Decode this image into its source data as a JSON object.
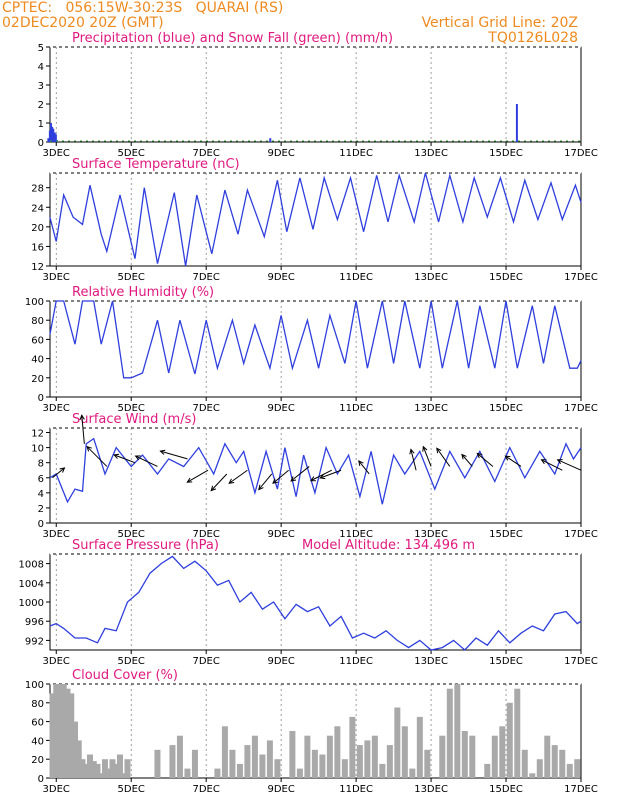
{
  "header": {
    "line1_left": "CPTEC:   056:15W-30:23S   QUARAI (RS)",
    "line2_left": "02DEC2020 20Z (GMT)",
    "line2_right": "Vertical Grid Line: 20Z",
    "line3_right": "TQ0126L028"
  },
  "colors": {
    "header": "#ee8a1e",
    "title": "#e0197f",
    "line": "#2f3fdd",
    "snow": "#2ca02c",
    "cloud": "#a9a9a9"
  },
  "x_axis": {
    "start_day": 2.8333,
    "end_day": 17.0,
    "tick_days": [
      3,
      5,
      7,
      9,
      11,
      13,
      15,
      17
    ],
    "tick_labels": [
      "3DEC",
      "5DEC",
      "7DEC",
      "9DEC",
      "11DEC",
      "13DEC",
      "15DEC",
      "17DEC"
    ]
  },
  "chart_data": [
    {
      "type": "bar",
      "title": "Precipitation (blue) and Snow Fall (green) (mm/h)",
      "ylim": [
        0,
        5
      ],
      "yticks": [
        0,
        1,
        2,
        3,
        4,
        5
      ],
      "series": [
        {
          "name": "Precipitation",
          "x": [
            2.79,
            2.83,
            2.86,
            2.89,
            2.92,
            2.96,
            2.99,
            3.02,
            8.71,
            15.29
          ],
          "values": [
            0.2,
            0.6,
            1.0,
            0.8,
            0.7,
            0.5,
            0.4,
            0.1,
            0.2,
            2.0
          ]
        }
      ]
    },
    {
      "type": "line",
      "title": "Surface Temperature (nC)",
      "ylim": [
        12,
        31
      ],
      "yticks": [
        12,
        16,
        20,
        24,
        28
      ],
      "series": [
        {
          "name": "Temperature",
          "x": [
            2.83,
            3.0,
            3.2,
            3.45,
            3.7,
            3.9,
            4.2,
            4.35,
            4.7,
            5.1,
            5.35,
            5.7,
            6.15,
            6.45,
            6.75,
            7.15,
            7.5,
            7.85,
            8.1,
            8.55,
            8.9,
            9.15,
            9.5,
            9.85,
            10.15,
            10.5,
            10.85,
            11.2,
            11.55,
            11.85,
            12.15,
            12.55,
            12.85,
            13.2,
            13.5,
            13.85,
            14.15,
            14.5,
            14.85,
            15.2,
            15.5,
            15.85,
            16.2,
            16.5,
            16.85,
            17.0
          ],
          "values": [
            22,
            17,
            26.5,
            22,
            20.5,
            28.5,
            18.5,
            15,
            26.5,
            13.5,
            28,
            12.5,
            27,
            12,
            26.5,
            14.5,
            27.5,
            18.5,
            27.5,
            18,
            29.5,
            19,
            30,
            19.5,
            30,
            21.5,
            30,
            19,
            30.5,
            21,
            30.5,
            21,
            31,
            21,
            30.5,
            21,
            30,
            22,
            30,
            21,
            29.5,
            21.5,
            29,
            21.5,
            28.5,
            25
          ]
        }
      ]
    },
    {
      "type": "line",
      "title": "Relative Humidity (%)",
      "ylim": [
        0,
        100
      ],
      "yticks": [
        0,
        20,
        40,
        60,
        80,
        100
      ],
      "series": [
        {
          "name": "Relative Humidity",
          "x": [
            2.83,
            3.0,
            3.2,
            3.5,
            3.7,
            4.0,
            4.2,
            4.5,
            4.8,
            5.0,
            5.3,
            5.7,
            6.0,
            6.3,
            6.7,
            7.0,
            7.3,
            7.7,
            8.0,
            8.3,
            8.7,
            9.0,
            9.3,
            9.7,
            10.0,
            10.3,
            10.7,
            11.0,
            11.3,
            11.7,
            12.0,
            12.3,
            12.7,
            13.0,
            13.3,
            13.7,
            14.0,
            14.3,
            14.7,
            15.0,
            15.3,
            15.7,
            16.0,
            16.3,
            16.7,
            16.9,
            17.0
          ],
          "values": [
            65,
            100,
            100,
            55,
            100,
            100,
            55,
            100,
            20,
            20,
            25,
            80,
            25,
            80,
            24,
            80,
            30,
            80,
            35,
            75,
            30,
            85,
            30,
            80,
            30,
            85,
            35,
            100,
            30,
            100,
            35,
            100,
            30,
            100,
            30,
            100,
            30,
            95,
            30,
            100,
            30,
            95,
            35,
            95,
            30,
            30,
            38
          ]
        }
      ]
    },
    {
      "type": "line",
      "title": "Surface Wind (m/s)",
      "ylim": [
        0,
        12.6
      ],
      "yticks": [
        0,
        2,
        4,
        6,
        8,
        10,
        12
      ],
      "series": [
        {
          "name": "Wind speed",
          "x": [
            2.83,
            3.0,
            3.3,
            3.5,
            3.7,
            3.8,
            4.0,
            4.3,
            4.6,
            5.0,
            5.3,
            5.7,
            6.0,
            6.4,
            6.8,
            7.2,
            7.5,
            7.8,
            8.0,
            8.3,
            8.6,
            8.9,
            9.1,
            9.4,
            9.6,
            9.9,
            10.2,
            10.5,
            10.8,
            11.1,
            11.4,
            11.7,
            12.0,
            12.3,
            12.7,
            13.1,
            13.5,
            13.9,
            14.3,
            14.7,
            15.1,
            15.5,
            15.9,
            16.3,
            16.6,
            16.8,
            17.0
          ],
          "values": [
            6,
            6.5,
            2.8,
            4.5,
            4.2,
            10.5,
            11.2,
            6.5,
            10,
            7.5,
            9,
            6.5,
            8.5,
            7.5,
            10,
            6.5,
            10.5,
            8,
            9.5,
            4,
            9.5,
            4.5,
            10,
            3.5,
            9,
            4,
            10,
            6.5,
            9,
            3.5,
            9.5,
            2.5,
            9,
            6.5,
            9.5,
            4.5,
            9.5,
            6,
            9.5,
            5.5,
            10,
            6,
            9.5,
            6.5,
            10.5,
            8.5,
            10
          ]
        }
      ],
      "wind_vectors": [
        {
          "x": 2.9,
          "speed": 6,
          "u": 2.3,
          "v": 1.9
        },
        {
          "x": 3.75,
          "speed": 10.5,
          "u": -0.5,
          "v": 5.5
        },
        {
          "x": 4.35,
          "speed": 7.5,
          "u": -3.8,
          "v": 3.8
        },
        {
          "x": 5.1,
          "speed": 8,
          "u": -4,
          "v": 1.5
        },
        {
          "x": 5.7,
          "speed": 7.5,
          "u": -4.2,
          "v": 2
        },
        {
          "x": 6.5,
          "speed": 8.5,
          "u": -5.2,
          "v": 1.5
        },
        {
          "x": 7.05,
          "speed": 7,
          "u": -4,
          "v": -2.3
        },
        {
          "x": 7.55,
          "speed": 6.5,
          "u": -3,
          "v": -3.2
        },
        {
          "x": 8.1,
          "speed": 7,
          "u": -3.5,
          "v": -2.5
        },
        {
          "x": 8.75,
          "speed": 6.5,
          "u": -2.5,
          "v": -3
        },
        {
          "x": 9.2,
          "speed": 7,
          "u": -3,
          "v": -2.5
        },
        {
          "x": 9.75,
          "speed": 7.5,
          "u": -3.5,
          "v": -2.8
        },
        {
          "x": 10.35,
          "speed": 7,
          "u": -4,
          "v": -2
        },
        {
          "x": 10.6,
          "speed": 7,
          "u": -4,
          "v": -1.5
        },
        {
          "x": 11.35,
          "speed": 6.5,
          "u": -2,
          "v": 2.5
        },
        {
          "x": 12.6,
          "speed": 7,
          "u": -1,
          "v": 4
        },
        {
          "x": 13.0,
          "speed": 7.5,
          "u": -1.5,
          "v": 3.8
        },
        {
          "x": 13.5,
          "speed": 7.5,
          "u": -2.5,
          "v": 3.5
        },
        {
          "x": 14.1,
          "speed": 7.5,
          "u": -2,
          "v": 2.3
        },
        {
          "x": 14.65,
          "speed": 7.5,
          "u": -3,
          "v": 2.5
        },
        {
          "x": 15.4,
          "speed": 7.5,
          "u": -3,
          "v": 2
        },
        {
          "x": 16.5,
          "speed": 7,
          "u": -4,
          "v": 2
        },
        {
          "x": 17.0,
          "speed": 7,
          "u": -4.5,
          "v": 2
        }
      ]
    },
    {
      "type": "line",
      "title": "Surface Pressure (hPa)",
      "annotation": "Model Altitude: 134.496 m",
      "ylim": [
        990,
        1010
      ],
      "yticks": [
        992,
        996,
        1000,
        1004,
        1008
      ],
      "series": [
        {
          "name": "Pressure",
          "x": [
            2.83,
            3.0,
            3.2,
            3.5,
            3.8,
            4.1,
            4.3,
            4.6,
            4.9,
            5.2,
            5.5,
            5.8,
            6.1,
            6.4,
            6.7,
            7.0,
            7.3,
            7.6,
            7.9,
            8.2,
            8.5,
            8.8,
            9.1,
            9.4,
            9.7,
            10.0,
            10.3,
            10.6,
            10.9,
            11.2,
            11.5,
            11.8,
            12.1,
            12.4,
            12.7,
            13.0,
            13.3,
            13.6,
            13.9,
            14.2,
            14.5,
            14.8,
            15.1,
            15.4,
            15.7,
            16.0,
            16.3,
            16.6,
            16.9,
            17.0
          ],
          "values": [
            995,
            995.5,
            994.5,
            992.5,
            992.5,
            991.5,
            994.5,
            994,
            1000,
            1002,
            1006,
            1008,
            1009.5,
            1007,
            1008.5,
            1006.5,
            1003.5,
            1004.5,
            1000,
            1002,
            998.5,
            1000,
            996.5,
            999.5,
            998,
            999,
            995,
            997,
            992.5,
            993.5,
            992.5,
            994,
            992,
            990.5,
            992,
            990,
            990.5,
            992,
            990,
            992.5,
            991,
            994,
            991.5,
            993.5,
            995,
            994,
            997.5,
            998,
            995.5,
            996
          ]
        }
      ]
    },
    {
      "type": "bar",
      "title": "Cloud Cover (%)",
      "ylim": [
        0,
        100
      ],
      "yticks": [
        0,
        20,
        40,
        60,
        80,
        100
      ],
      "series": [
        {
          "name": "Cloud Cover",
          "x": [
            2.9,
            3.0,
            3.1,
            3.2,
            3.3,
            3.4,
            3.5,
            3.6,
            3.7,
            3.8,
            3.9,
            4.0,
            4.1,
            4.2,
            4.3,
            4.4,
            4.5,
            4.6,
            4.7,
            4.8,
            4.9,
            5.0,
            5.5,
            5.7,
            5.9,
            6.1,
            6.3,
            6.5,
            6.7,
            6.9,
            7.1,
            7.3,
            7.5,
            7.7,
            7.9,
            8.1,
            8.3,
            8.5,
            8.7,
            8.9,
            9.1,
            9.3,
            9.5,
            9.7,
            9.9,
            10.1,
            10.3,
            10.5,
            10.7,
            10.9,
            11.1,
            11.3,
            11.5,
            11.7,
            11.9,
            12.1,
            12.3,
            12.5,
            12.7,
            12.9,
            13.1,
            13.3,
            13.5,
            13.7,
            13.9,
            14.1,
            14.3,
            14.5,
            14.7,
            14.9,
            15.1,
            15.3,
            15.5,
            15.7,
            15.9,
            16.1,
            16.3,
            16.5,
            16.7,
            16.9
          ],
          "values": [
            90,
            100,
            100,
            100,
            95,
            90,
            60,
            40,
            20,
            15,
            25,
            18,
            15,
            5,
            20,
            10,
            20,
            15,
            25,
            5,
            20,
            0,
            0,
            30,
            0,
            35,
            45,
            10,
            30,
            0,
            0,
            10,
            55,
            30,
            15,
            35,
            45,
            25,
            40,
            20,
            0,
            50,
            10,
            45,
            30,
            25,
            45,
            55,
            20,
            65,
            35,
            40,
            45,
            15,
            35,
            75,
            55,
            10,
            65,
            30,
            0,
            45,
            95,
            100,
            50,
            45,
            0,
            15,
            45,
            55,
            80,
            95,
            30,
            5,
            20,
            45,
            35,
            30,
            15,
            20
          ]
        }
      ]
    }
  ]
}
